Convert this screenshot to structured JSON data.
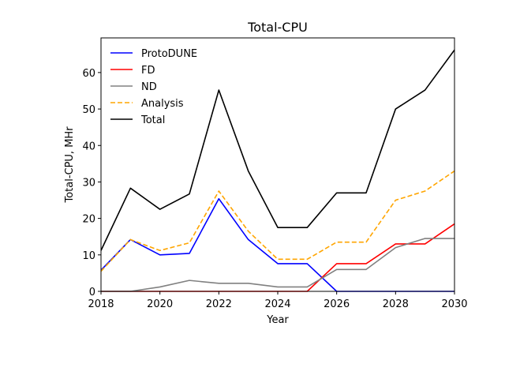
{
  "chart_data": {
    "type": "line",
    "title": "Total-CPU",
    "xlabel": "Year",
    "ylabel": "Total-CPU, MHr",
    "xlim": [
      2018,
      2030
    ],
    "ylim": [
      0,
      69.5
    ],
    "xticks": [
      2018,
      2020,
      2022,
      2024,
      2026,
      2028,
      2030
    ],
    "yticks": [
      0,
      10,
      20,
      30,
      40,
      50,
      60
    ],
    "grid": false,
    "legend_position": "upper-left",
    "x": [
      2018,
      2019,
      2020,
      2021,
      2022,
      2023,
      2024,
      2025,
      2026,
      2027,
      2028,
      2029,
      2030
    ],
    "series": [
      {
        "name": "ProtoDUNE",
        "color": "#0000ff",
        "dash": "solid",
        "values": [
          5.8,
          14.2,
          10.0,
          10.4,
          25.4,
          14.2,
          7.6,
          7.6,
          0,
          0,
          0,
          0,
          0
        ]
      },
      {
        "name": "FD",
        "color": "#ff0000",
        "dash": "solid",
        "values": [
          0,
          0,
          0,
          0,
          0,
          0,
          0,
          0,
          7.6,
          7.6,
          13.0,
          13.0,
          18.5
        ]
      },
      {
        "name": "ND",
        "color": "#808080",
        "dash": "solid",
        "values": [
          0,
          0,
          1.2,
          3.0,
          2.2,
          2.2,
          1.2,
          1.2,
          6.0,
          6.0,
          12.0,
          14.5,
          14.5
        ]
      },
      {
        "name": "Analysis",
        "color": "#ffa500",
        "dash": "dashed",
        "values": [
          5.5,
          14.2,
          11.2,
          13.3,
          27.5,
          16.5,
          8.8,
          8.8,
          13.5,
          13.5,
          25.0,
          27.5,
          33.0
        ]
      },
      {
        "name": "Total",
        "color": "#000000",
        "dash": "solid",
        "values": [
          11.2,
          28.3,
          22.5,
          26.7,
          55.2,
          33.0,
          17.5,
          17.5,
          27.0,
          27.0,
          50.0,
          55.2,
          66.2
        ]
      }
    ]
  }
}
